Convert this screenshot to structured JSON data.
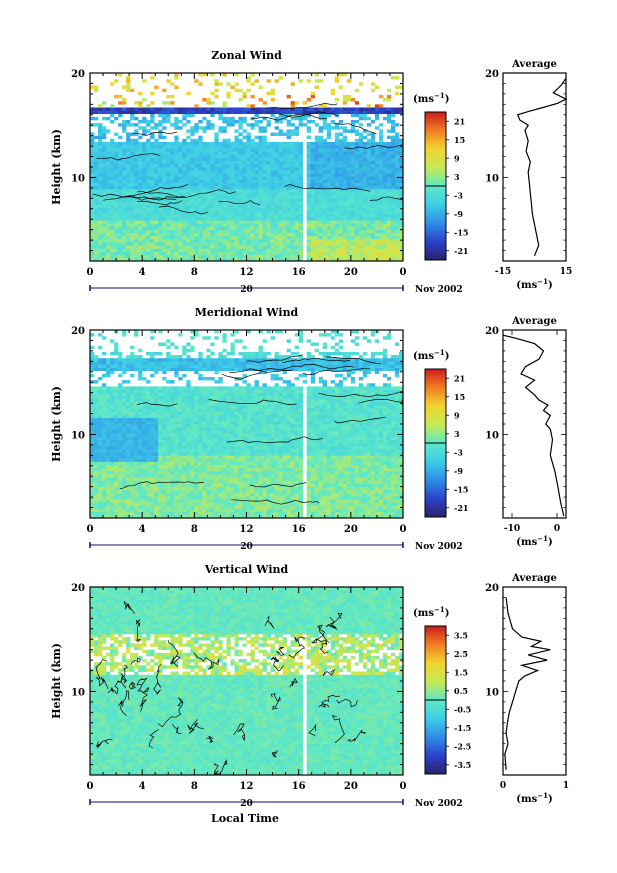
{
  "figure": {
    "xlabel": "Local Time",
    "month_label": "Nov 2002",
    "day_label": "20",
    "ylabel": "Height (km)",
    "unit_label": "(ms",
    "unit_exp": "−1",
    "unit_close": ")"
  },
  "chart_data": [
    {
      "type": "heatmap",
      "title": "Zonal Wind",
      "xlabel": "Local Time",
      "ylabel": "Height (km)",
      "x_ticks": [
        "0",
        "4",
        "8",
        "12",
        "16",
        "20",
        "0"
      ],
      "xlim": [
        0,
        24
      ],
      "y_ticks": [
        "20",
        "10"
      ],
      "ylim": [
        2,
        20
      ],
      "colorbar": {
        "unit": "(ms−1)",
        "ticks": [
          "21",
          "15",
          "9",
          "3",
          "-3",
          "-9",
          "-15",
          "-21"
        ],
        "range": [
          -24,
          24
        ]
      },
      "profile": {
        "title": "Average",
        "x_ticks": [
          "-15",
          "15"
        ],
        "xlim": [
          -15,
          15
        ],
        "y_ticks": [
          "20",
          "10"
        ],
        "points": [
          [
            0,
            2.5
          ],
          [
            2,
            3.5
          ],
          [
            1,
            4.5
          ],
          [
            0,
            5.5
          ],
          [
            -1,
            6.5
          ],
          [
            -1.5,
            7.5
          ],
          [
            -2,
            8.5
          ],
          [
            -2.5,
            9.5
          ],
          [
            -3,
            10.5
          ],
          [
            -2,
            11.5
          ],
          [
            -4,
            12.5
          ],
          [
            -3,
            13.5
          ],
          [
            -4.5,
            14.5
          ],
          [
            -3,
            15
          ],
          [
            -7,
            15.5
          ],
          [
            -8,
            16
          ],
          [
            -3,
            16.3
          ],
          [
            4,
            16.7
          ],
          [
            11,
            17.1
          ],
          [
            15,
            17.5
          ],
          [
            9,
            18.1
          ],
          [
            13,
            18.9
          ],
          [
            15,
            19.5
          ]
        ]
      }
    },
    {
      "type": "heatmap",
      "title": "Meridional Wind",
      "xlabel": "Local Time",
      "ylabel": "Height (km)",
      "x_ticks": [
        "0",
        "4",
        "8",
        "12",
        "16",
        "20",
        "0"
      ],
      "xlim": [
        0,
        24
      ],
      "y_ticks": [
        "20",
        "10"
      ],
      "ylim": [
        2,
        20
      ],
      "colorbar": {
        "unit": "(ms−1)",
        "ticks": [
          "21",
          "15",
          "9",
          "3",
          "-3",
          "-9",
          "-15",
          "-21"
        ],
        "range": [
          -24,
          24
        ]
      },
      "profile": {
        "title": "Average",
        "x_ticks": [
          "-10",
          "0"
        ],
        "xlim": [
          -12,
          2
        ],
        "y_ticks": [
          "20",
          "10"
        ],
        "points": [
          [
            1.5,
            2.2
          ],
          [
            0.8,
            3.5
          ],
          [
            0.2,
            5
          ],
          [
            -0.5,
            6.5
          ],
          [
            -1.5,
            8
          ],
          [
            -1,
            9.5
          ],
          [
            -1.5,
            10.5
          ],
          [
            -2.5,
            11
          ],
          [
            -1.5,
            11.8
          ],
          [
            -3,
            12.3
          ],
          [
            -2,
            12.8
          ],
          [
            -4,
            13.3
          ],
          [
            -5,
            13.8
          ],
          [
            -7,
            14.5
          ],
          [
            -5,
            15.2
          ],
          [
            -8,
            15.8
          ],
          [
            -7,
            16.5
          ],
          [
            -4,
            17.2
          ],
          [
            -3,
            18
          ],
          [
            -5,
            18.7
          ],
          [
            -9,
            19.2
          ],
          [
            -12,
            19.5
          ]
        ]
      }
    },
    {
      "type": "heatmap",
      "title": "Vertical Wind",
      "xlabel": "Local Time",
      "ylabel": "Height (km)",
      "x_ticks": [
        "0",
        "4",
        "8",
        "12",
        "16",
        "20",
        "0"
      ],
      "xlim": [
        0,
        24
      ],
      "y_ticks": [
        "20",
        "10"
      ],
      "ylim": [
        2,
        20
      ],
      "colorbar": {
        "unit": "(ms−1)",
        "ticks": [
          "3.5",
          "2.5",
          "1.5",
          "0.5",
          "-0.5",
          "-1.5",
          "-2.5",
          "-3.5"
        ],
        "range": [
          -4,
          4
        ]
      },
      "profile": {
        "title": "Average",
        "x_ticks": [
          "0",
          "1"
        ],
        "xlim": [
          0,
          1
        ],
        "y_ticks": [
          "20",
          "10"
        ],
        "points": [
          [
            0.05,
            2.5
          ],
          [
            0.03,
            4
          ],
          [
            0.08,
            5
          ],
          [
            0.05,
            6
          ],
          [
            0.07,
            7
          ],
          [
            0.1,
            8
          ],
          [
            0.15,
            9
          ],
          [
            0.2,
            10
          ],
          [
            0.25,
            11
          ],
          [
            0.35,
            11.5
          ],
          [
            0.55,
            12
          ],
          [
            0.3,
            12.5
          ],
          [
            0.7,
            13
          ],
          [
            0.4,
            13.5
          ],
          [
            0.75,
            14
          ],
          [
            0.45,
            14.3
          ],
          [
            0.6,
            14.8
          ],
          [
            0.3,
            15.2
          ],
          [
            0.15,
            16
          ],
          [
            0.08,
            17.5
          ],
          [
            0.05,
            19
          ]
        ]
      }
    }
  ]
}
